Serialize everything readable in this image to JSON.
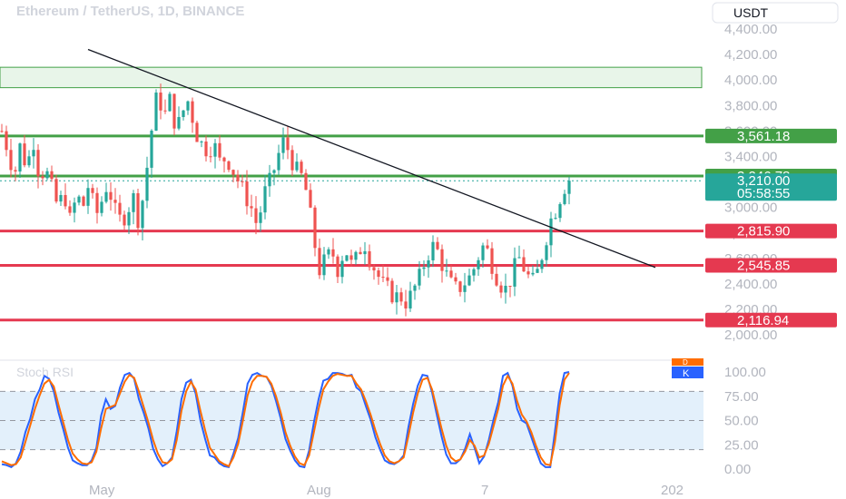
{
  "header": {
    "symbol_title": "Ethereum / TetherUS, 1D, BINANCE",
    "currency_button": "USDT"
  },
  "colors": {
    "up": "#26a69a",
    "down": "#ef5350",
    "support_line": "#e53950",
    "resistance_line": "#43a047",
    "trend_line": "#131722",
    "stoch_k": "#2962ff",
    "stoch_d": "#ff6d00",
    "stoch_band": "#e3f0fb",
    "zone_fill": "#e8f5e9"
  },
  "chart_data": [
    {
      "type": "candlestick",
      "title": "",
      "y_axis_ticks": [
        "4,400.00",
        "4,200.00",
        "4,000.00",
        "3,800.00",
        "3,600.00",
        "3,400.00",
        "3,200.00",
        "3,000.00",
        "2,800.00",
        "2,600.00",
        "2,400.00",
        "2,200.00",
        "2,000.00"
      ],
      "y_tick_values": [
        4400,
        4200,
        4000,
        3800,
        3600,
        3400,
        3200,
        3000,
        2800,
        2600,
        2400,
        2200,
        2000
      ],
      "ylim": [
        1800,
        4550
      ],
      "x_axis_labels": [
        "May",
        "Aug",
        "7",
        "202"
      ],
      "horizontal_levels": [
        {
          "label": "3,561.18",
          "value": 3561.18,
          "kind": "resistance"
        },
        {
          "label": "3,246.78",
          "value": 3246.78,
          "kind": "resistance"
        },
        {
          "label": "2,815.90",
          "value": 2815.9,
          "kind": "support"
        },
        {
          "label": "2,545.85",
          "value": 2545.85,
          "kind": "support"
        },
        {
          "label": "2,116.94",
          "value": 2116.94,
          "kind": "support"
        }
      ],
      "zone": {
        "low": 3940,
        "high": 4100
      },
      "current_price": {
        "label": "3,210.00",
        "value": 3210.0,
        "countdown": "05:58:55"
      },
      "trend_line": {
        "from": [
          0,
          4240
        ],
        "to": [
          1,
          2530
        ]
      },
      "path_values": [
        3600,
        3450,
        3250,
        3500,
        3300,
        3550,
        3250,
        3300,
        3150,
        3000,
        3120,
        2880,
        3100,
        3000,
        3200,
        2920,
        3050,
        3200,
        2980,
        2900,
        2950,
        3100,
        2880,
        3200,
        3600,
        3920,
        3700,
        3850,
        3600,
        3750,
        3850,
        3600,
        3500,
        3450,
        3500,
        3350,
        3400,
        3300,
        3200,
        3100,
        3000,
        2850,
        3100,
        3200,
        3350,
        3520,
        3450,
        3300,
        3250,
        3100,
        2760,
        2500,
        2600,
        2650,
        2500,
        2700,
        2550,
        2600,
        2750,
        2600,
        2500,
        2400,
        2350,
        2300,
        2300,
        2250,
        2350,
        2450,
        2600,
        2700,
        2650,
        2500,
        2400,
        2350,
        2400,
        2450,
        2550,
        2700,
        2650,
        2500,
        2400,
        2350,
        2500,
        2600,
        2500,
        2400,
        2500,
        2700,
        2900,
        3000,
        3150,
        3210
      ],
      "volatility": 110
    },
    {
      "type": "line",
      "title": "Stoch RSI",
      "legend": [
        "D",
        "K"
      ],
      "y_axis_ticks": [
        "100.00",
        "75.00",
        "50.00",
        "25.00",
        "0.00"
      ],
      "y_tick_values": [
        100,
        75,
        50,
        25,
        0
      ],
      "ylim": [
        0,
        100
      ],
      "band": [
        20,
        80
      ],
      "series": [
        {
          "name": "K",
          "values": [
            5,
            4,
            2,
            6,
            18,
            38,
            52,
            72,
            82,
            96,
            93,
            80,
            58,
            41,
            22,
            9,
            6,
            4,
            4,
            9,
            22,
            55,
            72,
            62,
            65,
            84,
            97,
            99,
            93,
            72,
            58,
            42,
            21,
            10,
            3,
            6,
            12,
            39,
            72,
            89,
            92,
            78,
            50,
            31,
            14,
            12,
            6,
            3,
            2,
            16,
            32,
            59,
            88,
            97,
            99,
            96,
            95,
            86,
            70,
            52,
            31,
            19,
            9,
            3,
            2,
            19,
            48,
            72,
            91,
            93,
            99,
            99,
            98,
            96,
            97,
            84,
            80,
            65,
            51,
            33,
            20,
            9,
            6,
            5,
            8,
            14,
            43,
            67,
            86,
            97,
            96,
            79,
            56,
            34,
            15,
            6,
            6,
            10,
            21,
            36,
            22,
            6,
            13,
            30,
            51,
            69,
            96,
            99,
            86,
            62,
            50,
            47,
            33,
            19,
            6,
            2,
            2,
            39,
            78,
            99,
            100
          ]
        },
        {
          "name": "D",
          "values": [
            8,
            6,
            4,
            5,
            12,
            28,
            45,
            62,
            76,
            88,
            92,
            85,
            66,
            48,
            30,
            16,
            10,
            6,
            5,
            7,
            18,
            42,
            62,
            64,
            66,
            78,
            90,
            97,
            94,
            80,
            64,
            48,
            30,
            16,
            7,
            6,
            10,
            30,
            60,
            80,
            90,
            82,
            60,
            40,
            22,
            15,
            8,
            5,
            3,
            12,
            26,
            50,
            76,
            90,
            96,
            96,
            95,
            88,
            75,
            58,
            38,
            24,
            13,
            6,
            4,
            14,
            38,
            62,
            82,
            90,
            96,
            98,
            97,
            96,
            96,
            88,
            82,
            70,
            56,
            40,
            26,
            14,
            8,
            6,
            8,
            12,
            34,
            58,
            78,
            92,
            94,
            82,
            62,
            42,
            24,
            12,
            8,
            10,
            18,
            30,
            24,
            12,
            14,
            26,
            44,
            62,
            86,
            96,
            88,
            70,
            56,
            49,
            38,
            24,
            12,
            5,
            4,
            28,
            66,
            92,
            99
          ]
        }
      ]
    }
  ]
}
